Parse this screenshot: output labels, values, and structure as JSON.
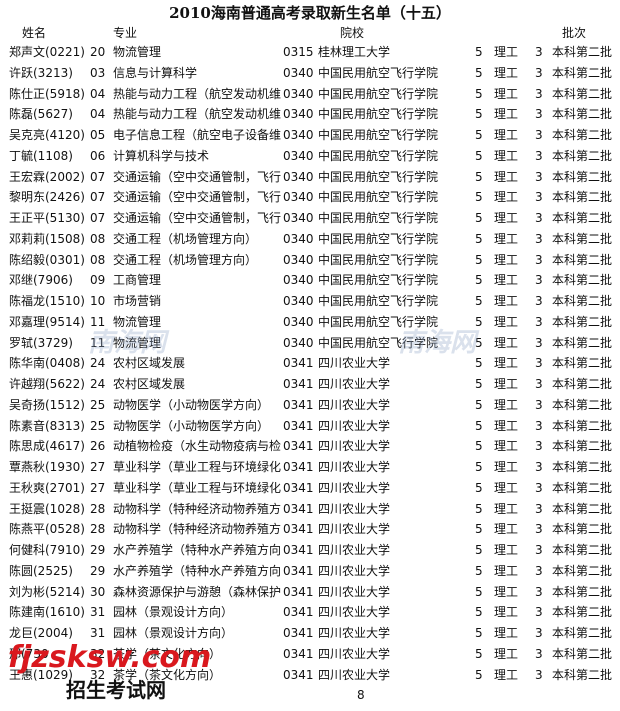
{
  "title": "2010海南普通高考录取新生名单（十五）",
  "headers": {
    "name": "姓名",
    "major": "专业",
    "school": "院校",
    "batch": "批次"
  },
  "rows": [
    [
      "郑声文(0221)",
      "20",
      "物流管理",
      "0315",
      "桂林理工大学",
      "5",
      "理工",
      "3",
      "本科第二批"
    ],
    [
      "许跃(3213)",
      "03",
      "信息与计算科学",
      "0340",
      "中国民用航空飞行学院",
      "5",
      "理工",
      "3",
      "本科第二批"
    ],
    [
      "陈仕正(5918)",
      "04",
      "热能与动力工程（航空发动机维",
      "0340",
      "中国民用航空飞行学院",
      "5",
      "理工",
      "3",
      "本科第二批"
    ],
    [
      "陈磊(5627)",
      "04",
      "热能与动力工程（航空发动机维",
      "0340",
      "中国民用航空飞行学院",
      "5",
      "理工",
      "3",
      "本科第二批"
    ],
    [
      "吴克亮(4120)",
      "05",
      "电子信息工程（航空电子设备维",
      "0340",
      "中国民用航空飞行学院",
      "5",
      "理工",
      "3",
      "本科第二批"
    ],
    [
      "丁毓(1108)",
      "06",
      "计算机科学与技术",
      "0340",
      "中国民用航空飞行学院",
      "5",
      "理工",
      "3",
      "本科第二批"
    ],
    [
      "王宏霖(2002)",
      "07",
      "交通运输（空中交通管制，飞行",
      "0340",
      "中国民用航空飞行学院",
      "5",
      "理工",
      "3",
      "本科第二批"
    ],
    [
      "黎明东(2426)",
      "07",
      "交通运输（空中交通管制，飞行",
      "0340",
      "中国民用航空飞行学院",
      "5",
      "理工",
      "3",
      "本科第二批"
    ],
    [
      "王正平(5130)",
      "07",
      "交通运输（空中交通管制，飞行",
      "0340",
      "中国民用航空飞行学院",
      "5",
      "理工",
      "3",
      "本科第二批"
    ],
    [
      "邓莉莉(1508)",
      "08",
      "交通工程（机场管理方向）",
      "0340",
      "中国民用航空飞行学院",
      "5",
      "理工",
      "3",
      "本科第二批"
    ],
    [
      "陈绍毅(0301)",
      "08",
      "交通工程（机场管理方向）",
      "0340",
      "中国民用航空飞行学院",
      "5",
      "理工",
      "3",
      "本科第二批"
    ],
    [
      "邓继(7906)",
      "09",
      "工商管理",
      "0340",
      "中国民用航空飞行学院",
      "5",
      "理工",
      "3",
      "本科第二批"
    ],
    [
      "陈福龙(1510)",
      "10",
      "市场营销",
      "0340",
      "中国民用航空飞行学院",
      "5",
      "理工",
      "3",
      "本科第二批"
    ],
    [
      "邓嘉理(9514)",
      "11",
      "物流管理",
      "0340",
      "中国民用航空飞行学院",
      "5",
      "理工",
      "3",
      "本科第二批"
    ],
    [
      "罗轼(3729)",
      "11",
      "物流管理",
      "0340",
      "中国民用航空飞行学院",
      "5",
      "理工",
      "3",
      "本科第二批"
    ],
    [
      "陈华南(0408)",
      "24",
      "农村区域发展",
      "0341",
      "四川农业大学",
      "5",
      "理工",
      "3",
      "本科第二批"
    ],
    [
      "许越翔(5622)",
      "24",
      "农村区域发展",
      "0341",
      "四川农业大学",
      "5",
      "理工",
      "3",
      "本科第二批"
    ],
    [
      "吴奇扬(1512)",
      "25",
      "动物医学（小动物医学方向）",
      "0341",
      "四川农业大学",
      "5",
      "理工",
      "3",
      "本科第二批"
    ],
    [
      "陈素音(8313)",
      "25",
      "动物医学（小动物医学方向）",
      "0341",
      "四川农业大学",
      "5",
      "理工",
      "3",
      "本科第二批"
    ],
    [
      "陈思成(4617)",
      "26",
      "动植物检疫（水生动物疫病与检",
      "0341",
      "四川农业大学",
      "5",
      "理工",
      "3",
      "本科第二批"
    ],
    [
      "覃燕秋(1930)",
      "27",
      "草业科学（草业工程与环境绿化",
      "0341",
      "四川农业大学",
      "5",
      "理工",
      "3",
      "本科第二批"
    ],
    [
      "王秋爽(2701)",
      "27",
      "草业科学（草业工程与环境绿化",
      "0341",
      "四川农业大学",
      "5",
      "理工",
      "3",
      "本科第二批"
    ],
    [
      "王挺震(1028)",
      "28",
      "动物科学（特种经济动物养殖方",
      "0341",
      "四川农业大学",
      "5",
      "理工",
      "3",
      "本科第二批"
    ],
    [
      "陈燕平(0528)",
      "28",
      "动物科学（特种经济动物养殖方",
      "0341",
      "四川农业大学",
      "5",
      "理工",
      "3",
      "本科第二批"
    ],
    [
      "何健科(7910)",
      "29",
      "水产养殖学（特种水产养殖方向",
      "0341",
      "四川农业大学",
      "5",
      "理工",
      "3",
      "本科第二批"
    ],
    [
      "陈圆(2525)",
      "29",
      "水产养殖学（特种水产养殖方向",
      "0341",
      "四川农业大学",
      "5",
      "理工",
      "3",
      "本科第二批"
    ],
    [
      "刘为彬(5214)",
      "30",
      "森林资源保护与游憩（森林保护",
      "0341",
      "四川农业大学",
      "5",
      "理工",
      "3",
      "本科第二批"
    ],
    [
      "陈建南(1610)",
      "31",
      "园林（景观设计方向）",
      "0341",
      "四川农业大学",
      "5",
      "理工",
      "3",
      "本科第二批"
    ],
    [
      "龙巨(2004)",
      "31",
      "园林（景观设计方向）",
      "0341",
      "四川农业大学",
      "5",
      "理工",
      "3",
      "本科第二批"
    ],
    [
      "邢(730",
      "32",
      "茶学（茶文化方向）",
      "0341",
      "四川农业大学",
      "5",
      "理工",
      "3",
      "本科第二批"
    ],
    [
      "王惠(1029)",
      "32",
      "茶学（茶文化方向）",
      "0341",
      "四川农业大学",
      "5",
      "理工",
      "3",
      "本科第二批"
    ]
  ],
  "page_number": "8",
  "watermarks": {
    "hinews": "南海网",
    "fjzsksw": "fjzsksw.com",
    "fjzsksw_cn": "招生考试网"
  }
}
